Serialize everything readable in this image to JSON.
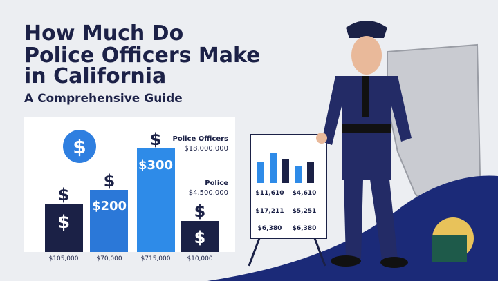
{
  "header": {
    "title_lines": [
      "How Much Do",
      "Police Officers Make",
      "in California"
    ],
    "subtitle": "A Comprehensive Guide"
  },
  "chart": {
    "dollar_sign": "$",
    "bar_labels": [
      "$200",
      "$300"
    ],
    "x_labels": [
      "$105,000",
      "$70,000",
      "$715,000",
      "$10,000"
    ],
    "legend": [
      {
        "name": "Police Officers",
        "value": "$18,000,000"
      },
      {
        "name": "Police",
        "value": "$4,500,000"
      }
    ]
  },
  "board": {
    "values": [
      "$11,610",
      "$4,610",
      "$17,211",
      "$5,251",
      "$6,380",
      "$6,380"
    ]
  }
}
